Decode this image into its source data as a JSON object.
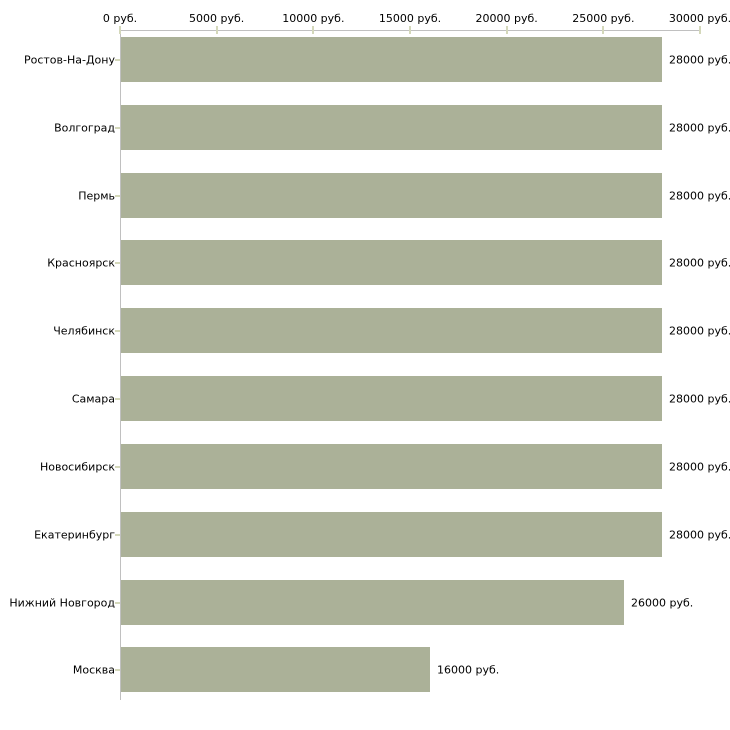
{
  "chart_data": {
    "type": "bar",
    "orientation": "horizontal",
    "title": "",
    "xlabel": "",
    "ylabel": "",
    "xlim": [
      0,
      30000
    ],
    "grid": false,
    "legend": false,
    "unit_suffix": " руб.",
    "x_ticks": [
      {
        "value": 0,
        "label": "0 руб."
      },
      {
        "value": 5000,
        "label": "5000 руб."
      },
      {
        "value": 10000,
        "label": "10000 руб."
      },
      {
        "value": 15000,
        "label": "15000 руб."
      },
      {
        "value": 20000,
        "label": "20000 руб."
      },
      {
        "value": 25000,
        "label": "25000 руб."
      },
      {
        "value": 30000,
        "label": "30000 руб."
      }
    ],
    "categories": [
      "Ростов-На-Дону",
      "Волгоград",
      "Пермь",
      "Красноярск",
      "Челябинск",
      "Самара",
      "Новосибирск",
      "Екатеринбург",
      "Нижний Новгород",
      "Москва"
    ],
    "values": [
      28000,
      28000,
      28000,
      28000,
      28000,
      28000,
      28000,
      28000,
      26000,
      16000
    ],
    "rows": [
      {
        "category": "Ростов-На-Дону",
        "value": 28000,
        "value_label": "28000 руб."
      },
      {
        "category": "Волгоград",
        "value": 28000,
        "value_label": "28000 руб."
      },
      {
        "category": "Пермь",
        "value": 28000,
        "value_label": "28000 руб."
      },
      {
        "category": "Красноярск",
        "value": 28000,
        "value_label": "28000 руб."
      },
      {
        "category": "Челябинск",
        "value": 28000,
        "value_label": "28000 руб."
      },
      {
        "category": "Самара",
        "value": 28000,
        "value_label": "28000 руб."
      },
      {
        "category": "Новосибирск",
        "value": 28000,
        "value_label": "28000 руб."
      },
      {
        "category": "Екатеринбург",
        "value": 28000,
        "value_label": "28000 руб."
      },
      {
        "category": "Нижний Новгород",
        "value": 26000,
        "value_label": "26000 руб."
      },
      {
        "category": "Москва",
        "value": 16000,
        "value_label": "16000 руб."
      }
    ],
    "colors": {
      "bar": "#abb198",
      "axis_line": "#c0c0c0",
      "tick_mark": "#d4d8ba",
      "text": "#000000",
      "background": "#ffffff"
    }
  }
}
